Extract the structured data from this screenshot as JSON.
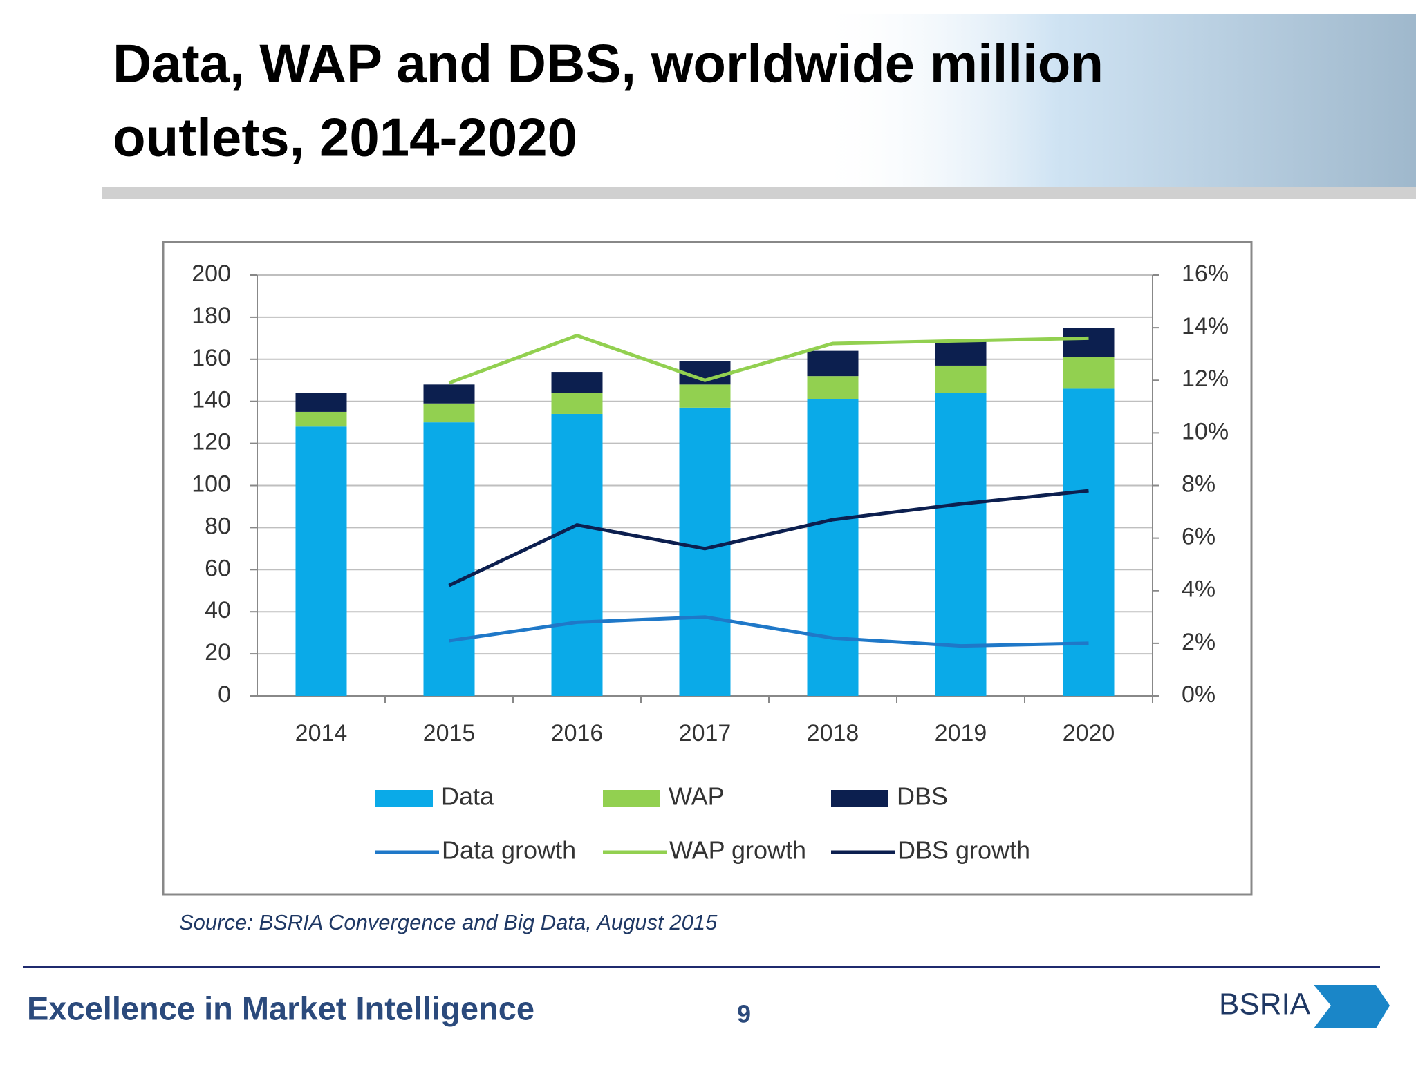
{
  "chart_data": {
    "type": "bar",
    "title": [
      "Data, WAP and DBS, worldwide million",
      "outlets, 2014-2020"
    ],
    "categories": [
      "2014",
      "2015",
      "2016",
      "2017",
      "2018",
      "2019",
      "2020"
    ],
    "series": [
      {
        "name": "Data",
        "type": "bar",
        "color": "#0aaae8",
        "values": [
          128,
          130,
          134,
          137,
          141,
          144,
          146
        ]
      },
      {
        "name": "WAP",
        "type": "bar",
        "color": "#92d050",
        "values": [
          7,
          9,
          10,
          11,
          11,
          13,
          15
        ]
      },
      {
        "name": "DBS",
        "type": "bar",
        "color": "#0c1f4f",
        "values": [
          9,
          9,
          10,
          11,
          12,
          12,
          14
        ]
      },
      {
        "name": "Data growth",
        "type": "line",
        "axis": "y2",
        "color": "#1f78c8",
        "values": [
          null,
          2.1,
          2.8,
          3.0,
          2.2,
          1.9,
          2.0
        ]
      },
      {
        "name": "WAP growth",
        "type": "line",
        "axis": "y2",
        "color": "#92d050",
        "values": [
          null,
          11.9,
          13.7,
          12.0,
          13.4,
          13.5,
          13.6
        ]
      },
      {
        "name": "DBS growth",
        "type": "line",
        "axis": "y2",
        "color": "#0c1f4f",
        "values": [
          null,
          4.2,
          6.5,
          5.6,
          6.7,
          7.3,
          7.8
        ]
      }
    ],
    "ylim": [
      0,
      200
    ],
    "yticks": [
      0,
      20,
      40,
      60,
      80,
      100,
      120,
      140,
      160,
      180,
      200
    ],
    "y2lim": [
      0,
      16
    ],
    "y2ticks": [
      {
        "value": 0,
        "label": "0%"
      },
      {
        "value": 2,
        "label": "2%"
      },
      {
        "value": 4,
        "label": "4%"
      },
      {
        "value": 6,
        "label": "6%"
      },
      {
        "value": 8,
        "label": "8%"
      },
      {
        "value": 10,
        "label": "10%"
      },
      {
        "value": 12,
        "label": "12%"
      },
      {
        "value": 14,
        "label": "14%"
      },
      {
        "value": 16,
        "label": "16%"
      }
    ],
    "grid": true,
    "legend": "bottom"
  },
  "slide": {
    "source": "Source: BSRIA Convergence and Big Data, August 2015",
    "footer": "Excellence in Market Intelligence",
    "page_number": "9",
    "logo": "BSRIA"
  }
}
